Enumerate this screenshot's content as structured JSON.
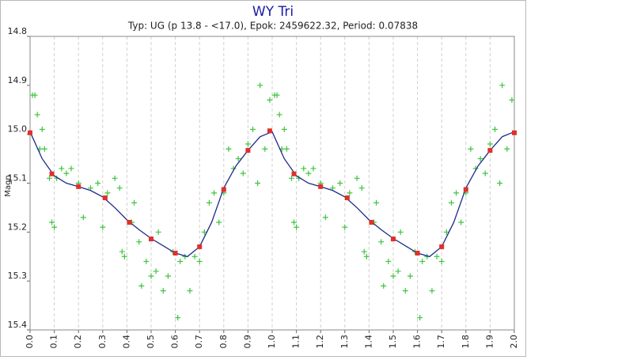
{
  "chart_data": {
    "type": "scatter",
    "title": "WY Tri",
    "subtitle": "Typ: UG (p 13.8 - <17.0), Epok: 2459622.32, Period: 0.07838",
    "y_label": "Magn",
    "xlim": [
      0,
      2
    ],
    "ylim": [
      14.8,
      15.4
    ],
    "y_inverted": true,
    "grid": "x",
    "xticks": [
      {
        "value": 0,
        "label": "0.0"
      },
      0.1,
      0.2,
      0.3,
      0.4,
      0.5,
      0.6,
      0.7,
      0.8,
      0.9,
      {
        "value": 1,
        "label": "1.0"
      },
      1.1,
      1.2,
      1.3,
      1.4,
      1.5,
      1.6,
      1.7,
      1.8,
      1.9,
      {
        "value": 2,
        "label": "2.0"
      }
    ],
    "yticks": [
      14.8,
      14.9,
      {
        "value": 15,
        "label": "15.0"
      },
      15.1,
      15.2,
      15.3,
      15.4
    ],
    "series": [
      {
        "type": "scatter",
        "color": "#3fc43f",
        "x": [
          0.01,
          0.02,
          0.03,
          0.04,
          0.05,
          0.06,
          0.08,
          0.09,
          0.1,
          0.11,
          0.13,
          0.15,
          0.17,
          0.2,
          0.22,
          0.25,
          0.28,
          0.3,
          0.32,
          0.35,
          0.37,
          0.38,
          0.39,
          0.42,
          0.43,
          0.45,
          0.46,
          0.48,
          0.5,
          0.52,
          0.53,
          0.55,
          0.57,
          0.59,
          0.61,
          0.62,
          0.64,
          0.66,
          0.68,
          0.7,
          0.72,
          0.74,
          0.76,
          0.78,
          0.8,
          0.82,
          0.84,
          0.86,
          0.88,
          0.9,
          0.92,
          0.94,
          0.95,
          0.97,
          0.99,
          1.01,
          1.02,
          1.03,
          1.04,
          1.05,
          1.06,
          1.08,
          1.09,
          1.1,
          1.11,
          1.13,
          1.15,
          1.17,
          1.2,
          1.22,
          1.25,
          1.28,
          1.3,
          1.32,
          1.35,
          1.37,
          1.38,
          1.39,
          1.42,
          1.43,
          1.45,
          1.46,
          1.48,
          1.5,
          1.52,
          1.53,
          1.55,
          1.57,
          1.59,
          1.61,
          1.62,
          1.64,
          1.66,
          1.68,
          1.7,
          1.72,
          1.74,
          1.76,
          1.78,
          1.8,
          1.82,
          1.84,
          1.86,
          1.88,
          1.9,
          1.92,
          1.94,
          1.95,
          1.97,
          1.99
        ],
        "values": [
          14.92,
          14.92,
          14.96,
          15.03,
          14.99,
          15.03,
          15.09,
          15.18,
          15.19,
          15.09,
          15.07,
          15.08,
          15.07,
          15.1,
          15.17,
          15.11,
          15.1,
          15.19,
          15.12,
          15.09,
          15.11,
          15.24,
          15.25,
          15.18,
          15.14,
          15.22,
          15.31,
          15.26,
          15.29,
          15.28,
          15.2,
          15.32,
          15.29,
          15.24,
          15.375,
          15.26,
          15.25,
          15.32,
          15.25,
          15.26,
          15.2,
          15.14,
          15.12,
          15.18,
          15.12,
          15.03,
          15.07,
          15.05,
          15.08,
          15.02,
          14.99,
          15.1,
          14.9,
          15.03,
          14.93,
          14.92,
          14.92,
          14.96,
          15.03,
          14.99,
          15.03,
          15.09,
          15.18,
          15.19,
          15.09,
          15.07,
          15.08,
          15.07,
          15.1,
          15.17,
          15.11,
          15.1,
          15.19,
          15.12,
          15.09,
          15.11,
          15.24,
          15.25,
          15.18,
          15.14,
          15.22,
          15.31,
          15.26,
          15.29,
          15.28,
          15.2,
          15.32,
          15.29,
          15.24,
          15.375,
          15.26,
          15.25,
          15.32,
          15.25,
          15.26,
          15.2,
          15.14,
          15.12,
          15.18,
          15.12,
          15.03,
          15.07,
          15.05,
          15.08,
          15.02,
          14.99,
          15.1,
          14.9,
          15.03,
          14.93
        ]
      },
      {
        "type": "line",
        "color": "#1c2a8c",
        "x": [
          0,
          0.05,
          0.1,
          0.15,
          0.2,
          0.25,
          0.3,
          0.35,
          0.4,
          0.45,
          0.5,
          0.55,
          0.6,
          0.65,
          0.7,
          0.75,
          0.8,
          0.85,
          0.9,
          0.95,
          1,
          1.05,
          1.1,
          1.15,
          1.2,
          1.25,
          1.3,
          1.35,
          1.4,
          1.45,
          1.5,
          1.55,
          1.6,
          1.65,
          1.7,
          1.75,
          1.8,
          1.85,
          1.9,
          1.95,
          2
        ],
        "values": [
          14.995,
          15.05,
          15.085,
          15.1,
          15.107,
          15.115,
          15.128,
          15.15,
          15.175,
          15.195,
          15.213,
          15.228,
          15.243,
          15.25,
          15.23,
          15.18,
          15.11,
          15.065,
          15.033,
          15.005,
          14.995,
          15.05,
          15.085,
          15.1,
          15.107,
          15.115,
          15.128,
          15.15,
          15.175,
          15.195,
          15.213,
          15.228,
          15.243,
          15.25,
          15.23,
          15.18,
          15.11,
          15.065,
          15.033,
          15.005,
          14.995
        ]
      },
      {
        "type": "square",
        "color": "#e0302a",
        "x": [
          0,
          0.09,
          0.2,
          0.31,
          0.41,
          0.5,
          0.6,
          0.7,
          0.8,
          0.9,
          0.99,
          1.09,
          1.2,
          1.31,
          1.41,
          1.5,
          1.6,
          1.7,
          1.8,
          1.9,
          2
        ],
        "values": [
          14.997,
          15.081,
          15.107,
          15.13,
          15.18,
          15.214,
          15.243,
          15.23,
          15.113,
          15.033,
          14.993,
          15.081,
          15.107,
          15.13,
          15.18,
          15.214,
          15.243,
          15.23,
          15.113,
          15.033,
          14.997
        ]
      }
    ]
  }
}
